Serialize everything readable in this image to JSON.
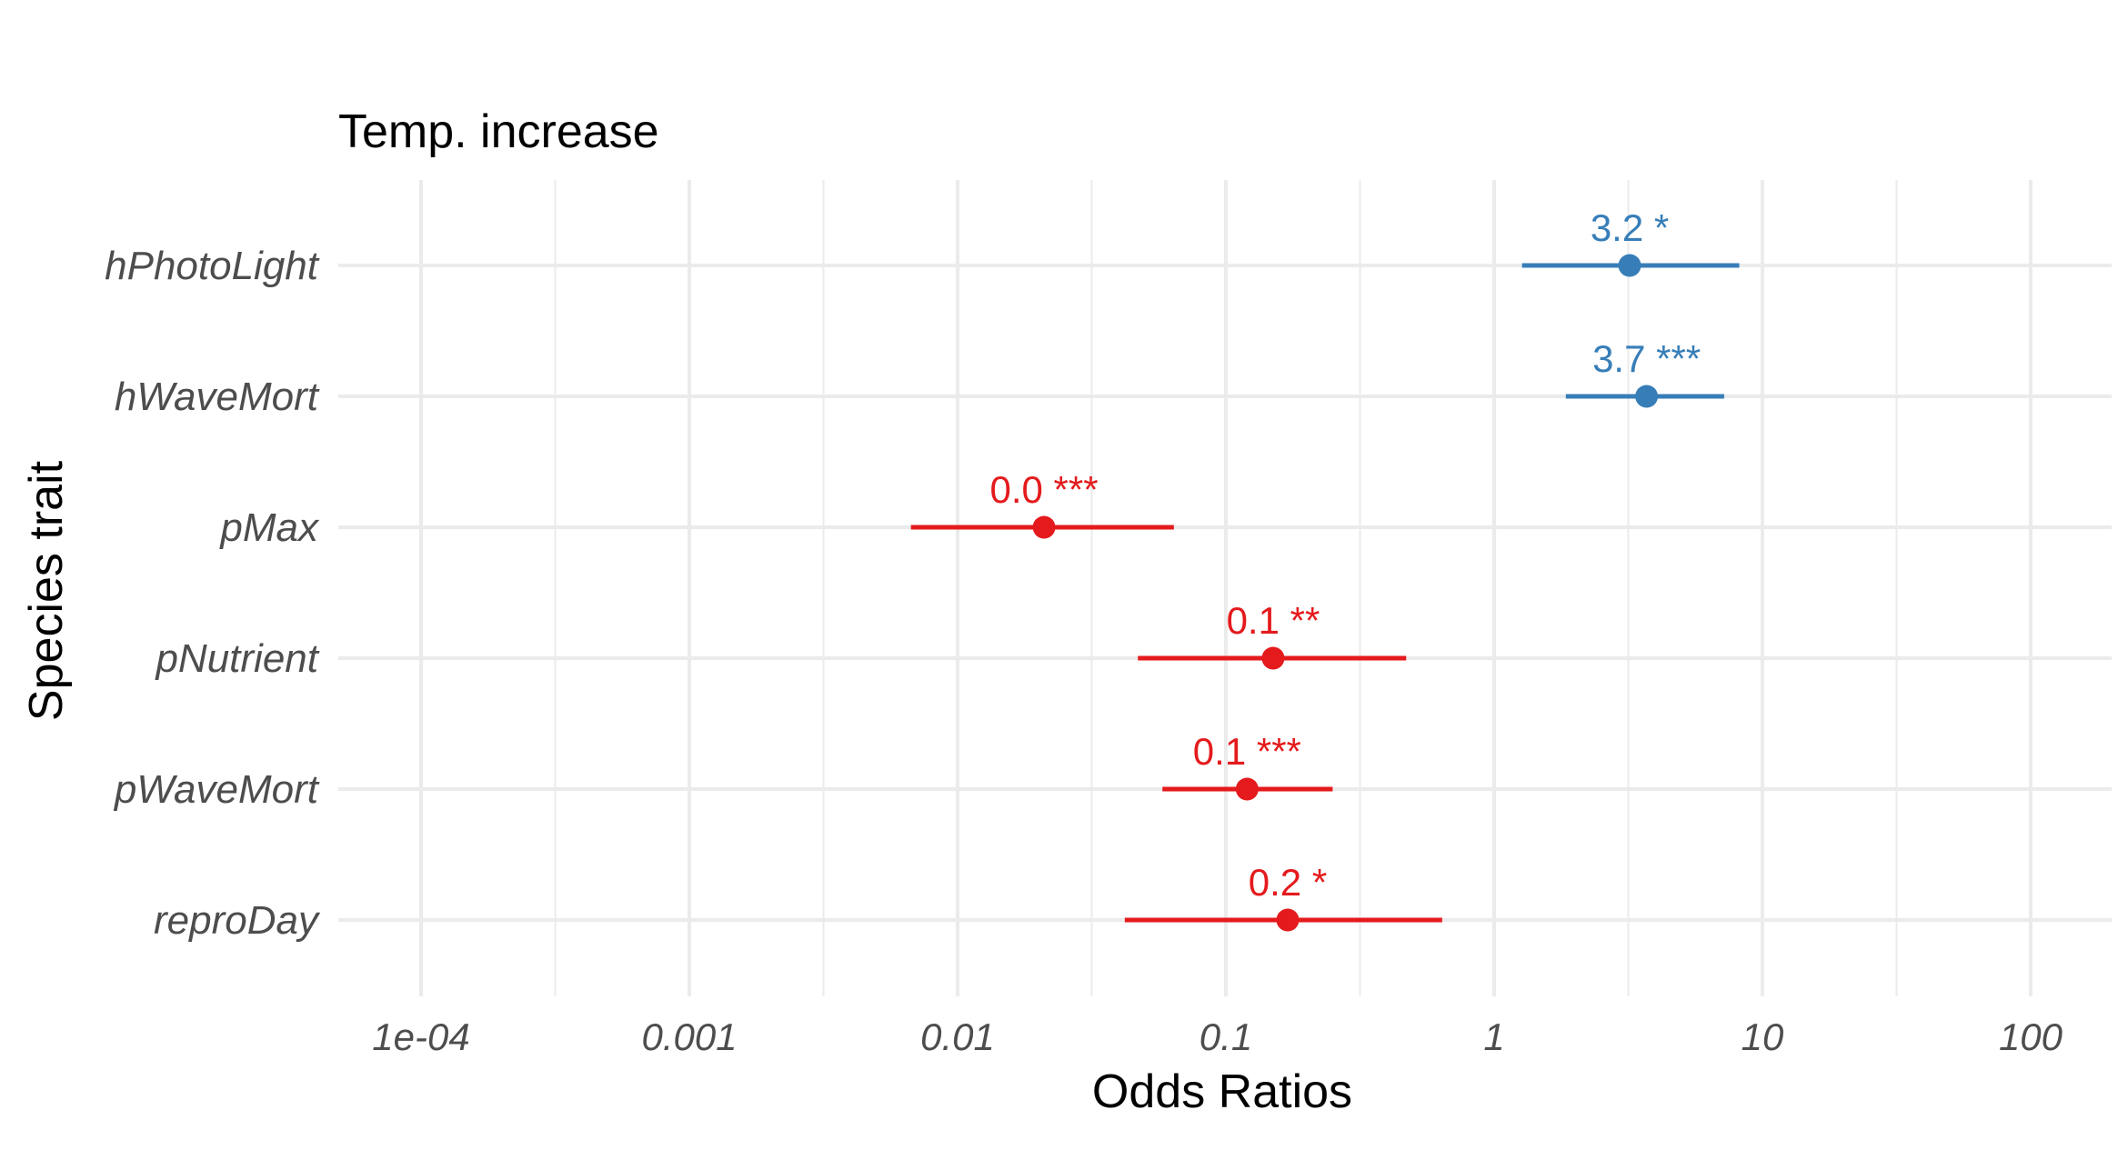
{
  "chart_data": {
    "type": "forest",
    "title": "Temp. increase",
    "xlabel": "Odds Ratios",
    "ylabel": "Species trait",
    "x_scale": "log10",
    "xlim": [
      5e-05,
      170
    ],
    "x_ticks": [
      0.0001,
      0.001,
      0.01,
      0.1,
      1,
      10,
      100
    ],
    "x_tick_labels": [
      "1e-04",
      "0.001",
      "0.01",
      "0.1",
      "1",
      "10",
      "100"
    ],
    "grid": true,
    "colors": {
      "positive": "#377eb8",
      "negative": "#e41a1c",
      "grid": "#ebebeb"
    },
    "rows": [
      {
        "term": "hPhotoLight",
        "estimate": 3.2,
        "ci_low": 1.27,
        "ci_high": 8.2,
        "label": "3.2 *",
        "direction": "positive"
      },
      {
        "term": "hWaveMort",
        "estimate": 3.7,
        "ci_low": 1.85,
        "ci_high": 7.2,
        "label": "3.7 ***",
        "direction": "positive"
      },
      {
        "term": "pMax",
        "estimate": 0.021,
        "ci_low": 0.0067,
        "ci_high": 0.064,
        "label": "0.0 ***",
        "direction": "negative"
      },
      {
        "term": "pNutrient",
        "estimate": 0.15,
        "ci_low": 0.047,
        "ci_high": 0.47,
        "label": "0.1 **",
        "direction": "negative"
      },
      {
        "term": "pWaveMort",
        "estimate": 0.12,
        "ci_low": 0.058,
        "ci_high": 0.25,
        "label": "0.1 ***",
        "direction": "negative"
      },
      {
        "term": "reproDay",
        "estimate": 0.17,
        "ci_low": 0.042,
        "ci_high": 0.64,
        "label": "0.2 *",
        "direction": "negative"
      }
    ]
  }
}
